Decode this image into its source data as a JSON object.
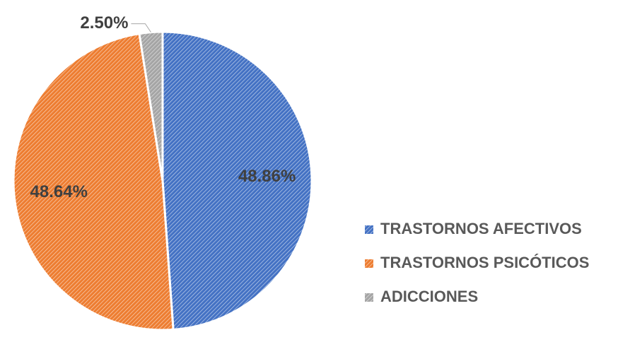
{
  "chart_data": {
    "type": "pie",
    "categories": [
      "TRASTORNOS AFECTIVOS",
      "TRASTORNOS PSICÓTICOS",
      "ADICCIONES"
    ],
    "values": [
      48.86,
      48.64,
      2.5
    ],
    "value_labels": [
      "48.86%",
      "48.64%",
      "2.50%"
    ],
    "colors": [
      "#4472c4",
      "#ed7d31",
      "#a5a5a5"
    ],
    "legend": "right"
  }
}
